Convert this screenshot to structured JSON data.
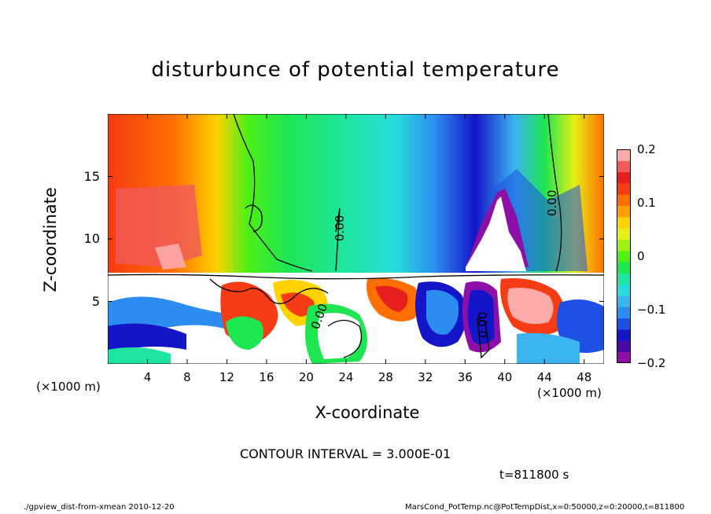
{
  "chart_data": {
    "type": "heatmap",
    "title": "disturbunce of potential temperature",
    "xlabel": "X-coordinate",
    "ylabel": "Z-coordinate",
    "x_unit_left": "(×1000 m)",
    "x_unit_right": "(×1000 m)",
    "xlim": [
      0,
      50
    ],
    "ylim": [
      0,
      20
    ],
    "xticks": [
      4,
      8,
      12,
      16,
      20,
      24,
      28,
      32,
      36,
      40,
      44,
      48
    ],
    "yticks": [
      5,
      10,
      15
    ],
    "colorbar": {
      "range": [
        -0.2,
        0.2
      ],
      "ticks": [
        {
          "value": 0.2,
          "label": "0.2"
        },
        {
          "value": 0.1,
          "label": "0.1"
        },
        {
          "value": 0,
          "label": "0"
        },
        {
          "value": -0.1,
          "label": "−0.1"
        },
        {
          "value": -0.2,
          "label": "−0.2"
        }
      ],
      "colors": [
        "#8c0fa8",
        "#4b0aa5",
        "#1414c8",
        "#1e50e6",
        "#2d8cf0",
        "#3cb4f0",
        "#28dcdc",
        "#1ee6a0",
        "#1ee650",
        "#50f014",
        "#a0f014",
        "#e6f014",
        "#ffd200",
        "#ffa000",
        "#ff6e00",
        "#f53c14",
        "#e61e1e",
        "#f05a5a",
        "#ffaaaa"
      ]
    },
    "contour_labels": [
      "0.00",
      "0.00",
      "0.00",
      "0.00"
    ],
    "contour_interval": "CONTOUR INTERVAL = 3.000E-01"
  },
  "time_label": "t=811800 s",
  "footer_left": "./gpview_dist-from-xmean  2010-12-20",
  "footer_right": "MarsCond_PotTemp.nc@PotTempDist,x=0:50000,z=0:20000,t=811800"
}
